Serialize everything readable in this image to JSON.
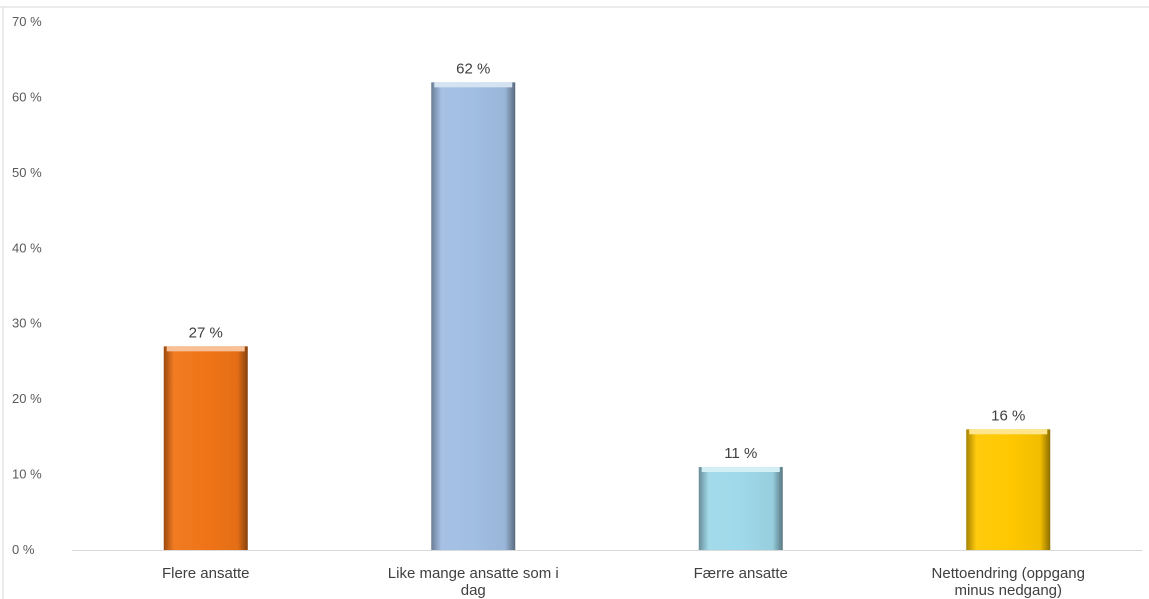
{
  "chart_data": {
    "type": "bar",
    "categories": [
      "Flere ansatte",
      "Like mange ansatte som i dag",
      "Færre ansatte",
      "Nettoendring (oppgang minus nedgang)"
    ],
    "category_lines": [
      [
        "Flere ansatte"
      ],
      [
        "Like mange ansatte som i",
        "dag"
      ],
      [
        "Færre ansatte"
      ],
      [
        "Nettoendring (oppgang",
        "minus nedgang)"
      ]
    ],
    "values": [
      27,
      62,
      11,
      16
    ],
    "data_labels": [
      "27 %",
      "62 %",
      "11 %",
      "16 %"
    ],
    "ylim": [
      0,
      70
    ],
    "yticks": [
      0,
      10,
      20,
      30,
      40,
      50,
      60,
      70
    ],
    "ytick_labels": [
      "0 %",
      "10 %",
      "20 %",
      "30 %",
      "40 %",
      "50 %",
      "60 %",
      "70 %"
    ],
    "title": "",
    "xlabel": "",
    "ylabel": "",
    "grid": false,
    "bar_colors": [
      "#F07417",
      "#A1BEE3",
      "#9FD9EA",
      "#FFC800"
    ],
    "axis_color": "#D9D9D9",
    "border_color": "#D9D9D9"
  }
}
